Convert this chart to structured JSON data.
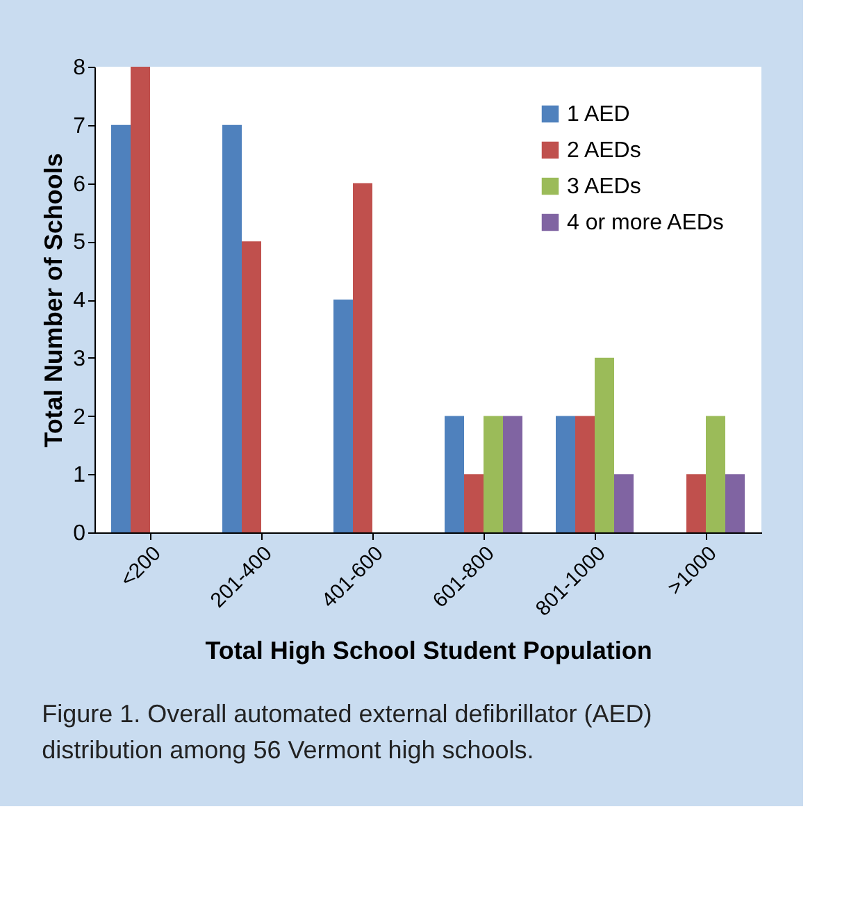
{
  "chart_data": {
    "type": "bar",
    "categories": [
      "<200",
      "201-400",
      "401-600",
      "601-800",
      "801-1000",
      ">1000"
    ],
    "series": [
      {
        "name": "1 AED",
        "color": "#4f81bd",
        "values": [
          7,
          7,
          4,
          2,
          2,
          0
        ]
      },
      {
        "name": "2 AEDs",
        "color": "#c0504d",
        "values": [
          8,
          5,
          6,
          1,
          2,
          1
        ]
      },
      {
        "name": "3 AEDs",
        "color": "#9bbb59",
        "values": [
          0,
          0,
          0,
          2,
          3,
          2
        ]
      },
      {
        "name": "4 or more AEDs",
        "color": "#8064a2",
        "values": [
          0,
          0,
          0,
          2,
          1,
          1
        ]
      }
    ],
    "xlabel": "Total High School Student Population",
    "ylabel": "Total Number of Schools",
    "ylim": [
      0,
      8
    ],
    "yticks": [
      0,
      1,
      2,
      3,
      4,
      5,
      6,
      7,
      8
    ],
    "grid": false,
    "legend": "top right",
    "annotations": [
      "Figure 1. Overall automated external defibrillator (AED) distribution among 56 Vermont high schools."
    ]
  }
}
